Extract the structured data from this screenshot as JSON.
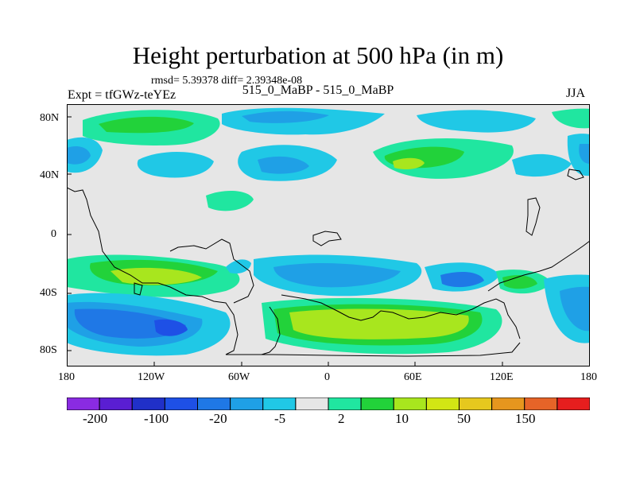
{
  "map": {
    "title": "Height perturbation at 500 hPa (in m)",
    "stats": "rmsd= 5.39378 diff= 2.39348e-08",
    "experiment": "Expt = tfGWz-teYEz",
    "comparison": "515_0_MaBP - 515_0_MaBP",
    "season": "JJA",
    "latitude_ticks": [
      "80N",
      "40N",
      "0",
      "40S",
      "80S"
    ],
    "longitude_ticks": [
      "180",
      "120W",
      "60W",
      "0",
      "60E",
      "120E",
      "180"
    ],
    "background_color": "#e6e6e6"
  },
  "colorbar": {
    "colors": [
      "#8a2be2",
      "#5a1ed2",
      "#2030c8",
      "#1e50e6",
      "#1f78e6",
      "#1fa0e6",
      "#20c8e6",
      "#e6e6e6",
      "#20e6a0",
      "#22d23a",
      "#a8e61e",
      "#d2e614",
      "#e6c81e",
      "#e6961e",
      "#e66428",
      "#e61e1e"
    ],
    "labels": [
      "-200",
      "-100",
      "-20",
      "-5",
      "2",
      "10",
      "50",
      "150"
    ]
  }
}
